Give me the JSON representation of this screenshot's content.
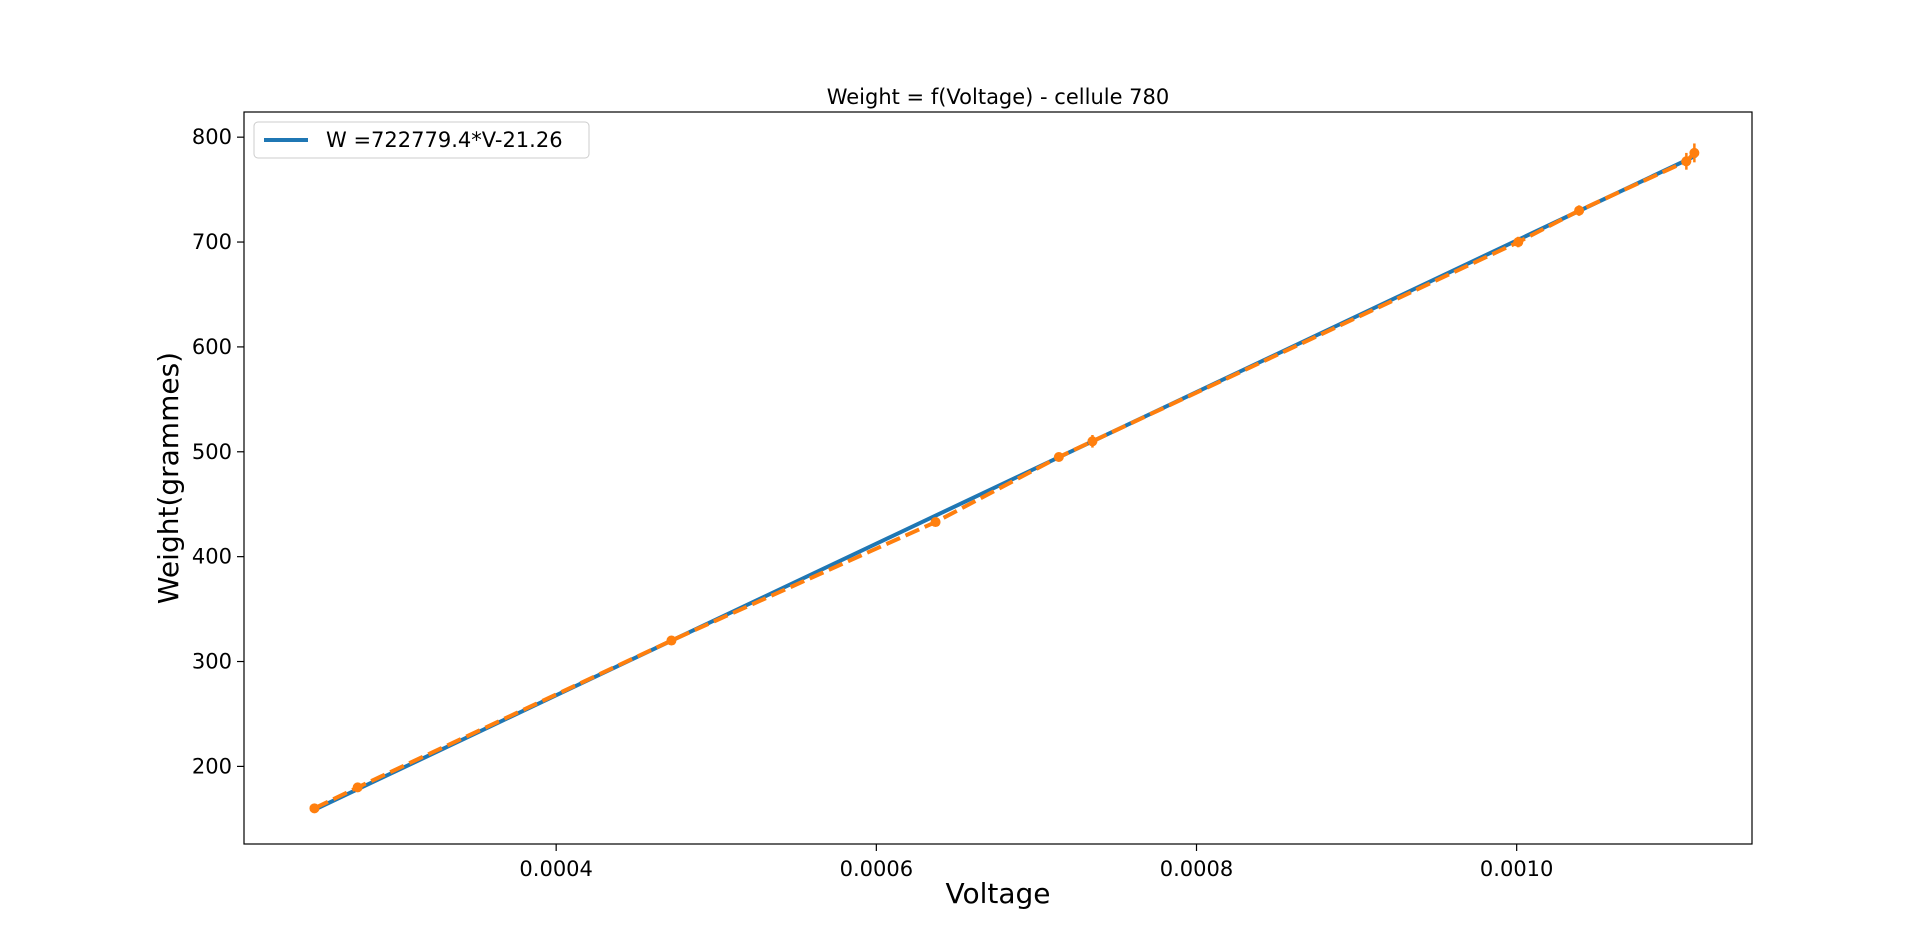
{
  "chart_data": {
    "type": "line",
    "title": "Weight = f(Voltage) - cellule 780",
    "xlabel": "Voltage",
    "ylabel": "Weight(grammes)",
    "xlim": [
      0.000205,
      0.001147
    ],
    "ylim": [
      126,
      824
    ],
    "xticks": [
      0.0004,
      0.0006,
      0.0008,
      0.001
    ],
    "xtick_labels": [
      "0.0004",
      "0.0006",
      "0.0008",
      "0.0010"
    ],
    "yticks": [
      200,
      300,
      400,
      500,
      600,
      700,
      800
    ],
    "ytick_labels": [
      "200",
      "300",
      "400",
      "500",
      "600",
      "700",
      "800"
    ],
    "legend": {
      "position": "top-left",
      "entries": [
        "W =722779.4*V-21.26"
      ]
    },
    "series": [
      {
        "name": "W =722779.4*V-21.26",
        "style": "solid",
        "color": "#1f77b4",
        "x": [
          0.000249,
          0.001111
        ],
        "y": [
          158.7,
          781.7
        ]
      },
      {
        "style": "dashed-markers-errorbars",
        "color": "#ff7f0e",
        "x": [
          0.000249,
          0.000276,
          0.000472,
          0.000637,
          0.000714,
          0.000735,
          0.001001,
          0.001039,
          0.001106,
          0.001111
        ],
        "y": [
          160,
          180,
          320,
          433,
          495,
          510,
          700,
          730,
          777,
          785
        ],
        "yerr": [
          1,
          1,
          1,
          1,
          2,
          6,
          5,
          5,
          8,
          9
        ]
      }
    ]
  }
}
